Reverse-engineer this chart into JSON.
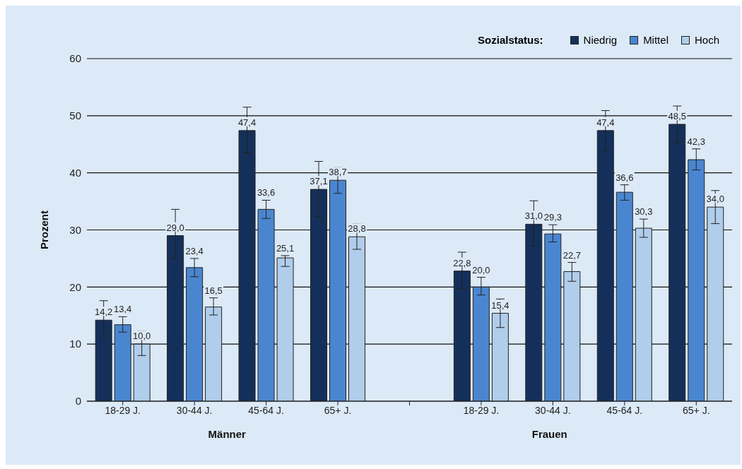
{
  "chart_data": {
    "type": "bar",
    "ylabel": "Prozent",
    "legend_title": "Sozialstatus:",
    "categories": [
      "18-29 J.",
      "30-44 J.",
      "45-64 J.",
      "65+ J.",
      null,
      "18-29 J.",
      "30-44 J.",
      "45-64 J.",
      "65+ J."
    ],
    "series": [
      {
        "name": "Niedrig",
        "color": "#14305a",
        "values": [
          14.2,
          29.0,
          47.4,
          37.1,
          null,
          22.8,
          31.0,
          47.4,
          48.5
        ],
        "value_labels": [
          "14,2",
          "29,0",
          "47,4",
          "37,1",
          null,
          "22,8",
          "31,0",
          "47,4",
          "48,5"
        ],
        "errors": [
          [
            11.4,
            17.6
          ],
          [
            24.9,
            33.6
          ],
          [
            43.5,
            51.5
          ],
          [
            32.3,
            42.0
          ],
          null,
          [
            19.7,
            26.1
          ],
          [
            27.2,
            35.1
          ],
          [
            43.9,
            50.9
          ],
          [
            45.3,
            51.7
          ]
        ]
      },
      {
        "name": "Mittel",
        "color": "#4a86d0",
        "values": [
          13.4,
          23.4,
          33.6,
          38.7,
          null,
          20.0,
          29.3,
          36.6,
          42.3
        ],
        "value_labels": [
          "13,4",
          "23,4",
          "33,6",
          "38,7",
          null,
          "20,0",
          "29,3",
          "36,6",
          "42,3"
        ],
        "errors": [
          [
            12.1,
            14.8
          ],
          [
            21.8,
            25.0
          ],
          [
            32.0,
            35.2
          ],
          [
            36.4,
            41.0
          ],
          null,
          [
            18.6,
            21.7
          ],
          [
            27.9,
            30.9
          ],
          [
            35.2,
            37.9
          ],
          [
            40.5,
            44.2
          ]
        ]
      },
      {
        "name": "Hoch",
        "color": "#b0cdeb",
        "values": [
          10.0,
          16.5,
          25.1,
          28.8,
          null,
          15.4,
          22.7,
          30.3,
          34.0
        ],
        "value_labels": [
          "10,0",
          "16,5",
          "25,1",
          "28,8",
          null,
          "15,4",
          "22,7",
          "30,3",
          "34,0"
        ],
        "errors": [
          [
            8.0,
            12.3
          ],
          [
            15.1,
            18.1
          ],
          [
            23.6,
            25.5
          ],
          [
            26.6,
            31.1
          ],
          null,
          [
            12.9,
            17.9
          ],
          [
            21.0,
            24.3
          ],
          [
            28.7,
            31.9
          ],
          [
            31.1,
            36.9
          ]
        ]
      }
    ],
    "ylim": [
      0,
      60
    ],
    "yticks": [
      0,
      10,
      20,
      30,
      40,
      50,
      60
    ],
    "grid": "y",
    "legend": "top right",
    "annotations": [
      "Männer",
      "Frauen"
    ]
  }
}
